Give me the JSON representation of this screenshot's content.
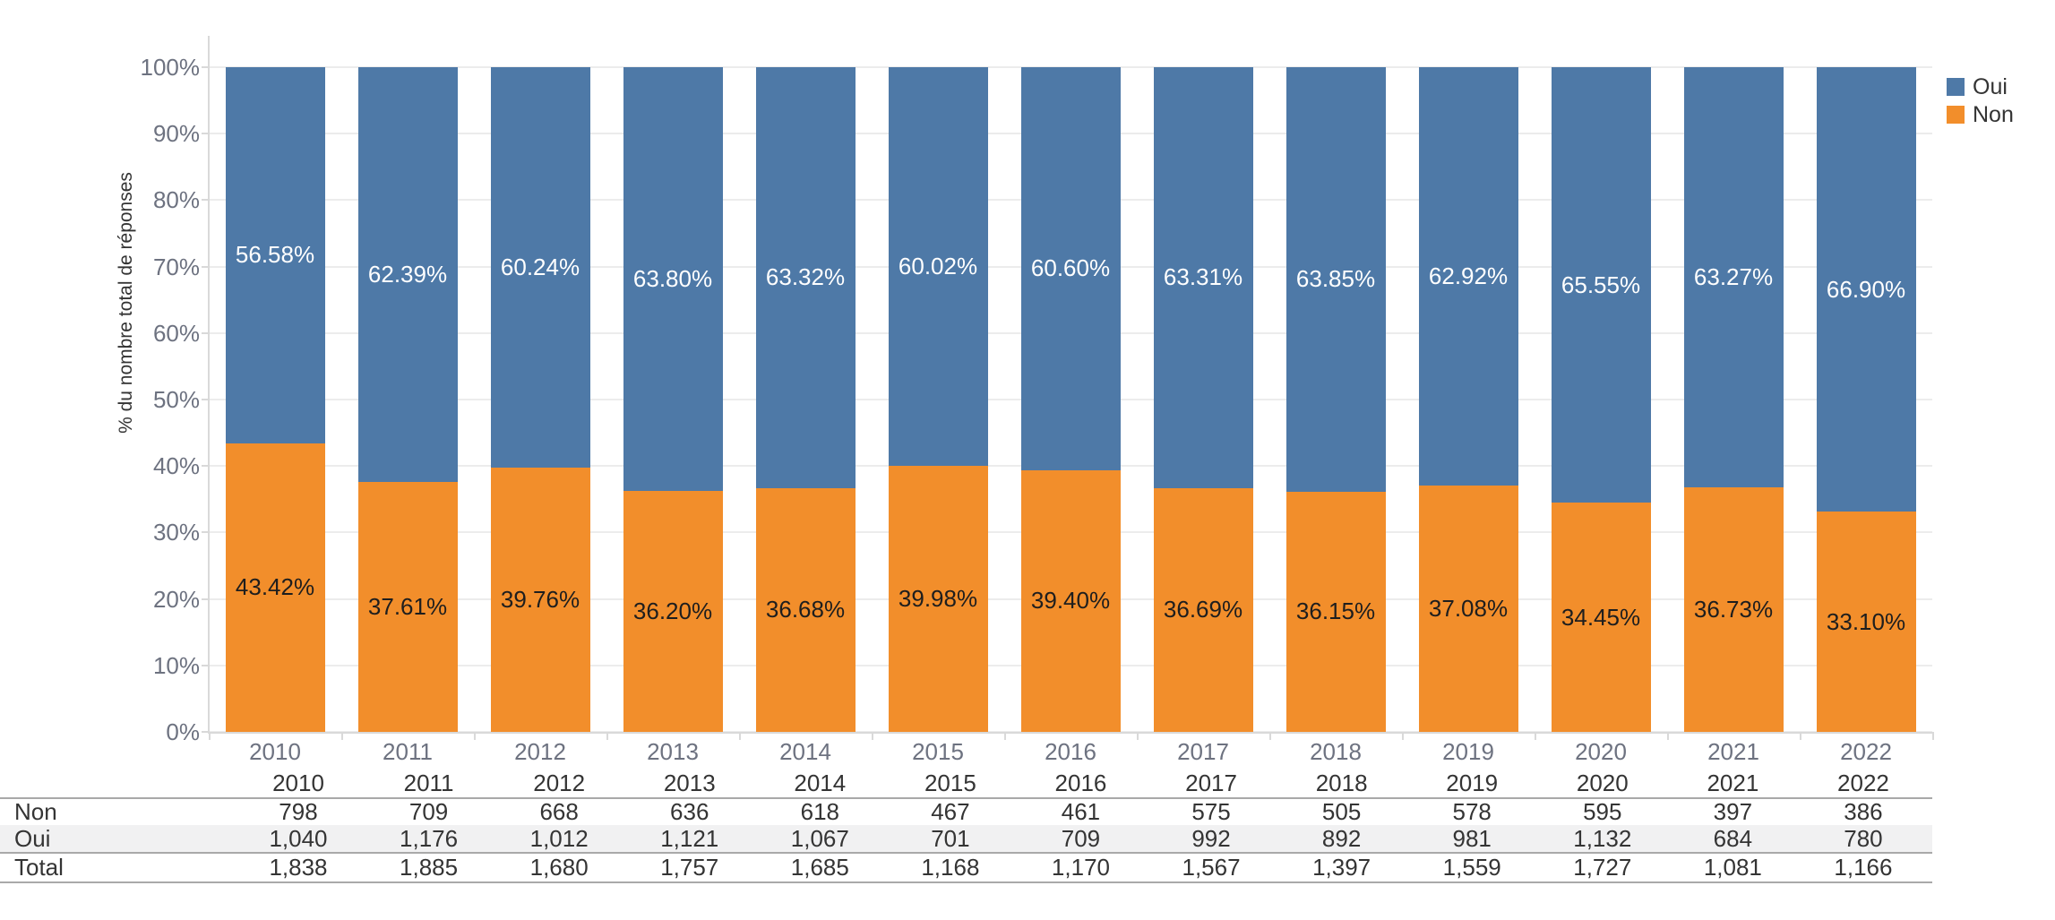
{
  "chart_data": {
    "type": "bar",
    "stacked": true,
    "percent_axis": true,
    "title": "",
    "ylabel": "% du nombre total de réponses",
    "xlabel": "",
    "ylim": [
      0,
      100
    ],
    "y_ticks": [
      "0%",
      "10%",
      "20%",
      "30%",
      "40%",
      "50%",
      "60%",
      "70%",
      "80%",
      "90%",
      "100%"
    ],
    "grid": true,
    "legend_position": "top-right",
    "categories": [
      "2010",
      "2011",
      "2012",
      "2013",
      "2014",
      "2015",
      "2016",
      "2017",
      "2018",
      "2019",
      "2020",
      "2021",
      "2022"
    ],
    "series": [
      {
        "name": "Oui",
        "color": "#4e79a7",
        "label_color": "#ffffff",
        "pct": [
          56.58,
          62.39,
          60.24,
          63.8,
          63.32,
          60.02,
          60.6,
          63.31,
          63.85,
          62.92,
          65.55,
          63.27,
          66.9
        ],
        "counts": [
          1040,
          1176,
          1012,
          1121,
          1067,
          701,
          709,
          992,
          892,
          981,
          1132,
          684,
          780
        ]
      },
      {
        "name": "Non",
        "color": "#f28e2b",
        "label_color": "#1e1e1e",
        "pct": [
          43.42,
          37.61,
          39.76,
          36.2,
          36.68,
          39.98,
          39.4,
          36.69,
          36.15,
          37.08,
          34.45,
          36.73,
          33.1
        ],
        "counts": [
          798,
          709,
          668,
          636,
          618,
          467,
          461,
          575,
          505,
          578,
          595,
          397,
          386
        ]
      }
    ],
    "totals": [
      1838,
      1885,
      1680,
      1757,
      1685,
      1168,
      1170,
      1567,
      1397,
      1559,
      1727,
      1081,
      1166
    ]
  },
  "table": {
    "row_labels": [
      "Non",
      "Oui",
      "Total"
    ]
  },
  "colors": {
    "axis_text": "#6d7280",
    "table_text": "#343434",
    "gridline": "#ececec",
    "axis_line": "#d9d9d9",
    "table_rule": "#a9a9a9",
    "row_band": "#f1f1f2"
  }
}
